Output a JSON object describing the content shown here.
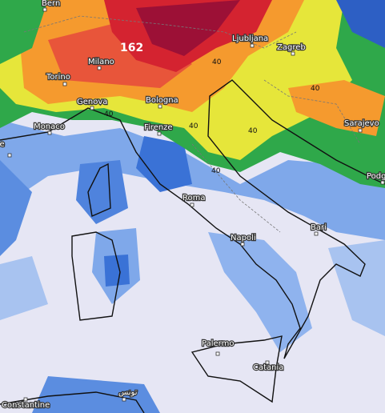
{
  "map": {
    "cities": [
      "Bern",
      "Ljubljana",
      "Zagreb",
      "Milano",
      "Torino",
      "Genova",
      "Bologna",
      "Monaco",
      "Firenze",
      "Sarajevo",
      "Roma",
      "Bari",
      "Napoli",
      "Palermo",
      "Catania",
      "Constantine",
      "تونس",
      "Podg",
      "lle"
    ],
    "contour_labels": [
      "162",
      "40",
      "40",
      "40",
      "40",
      "40",
      "40"
    ]
  }
}
